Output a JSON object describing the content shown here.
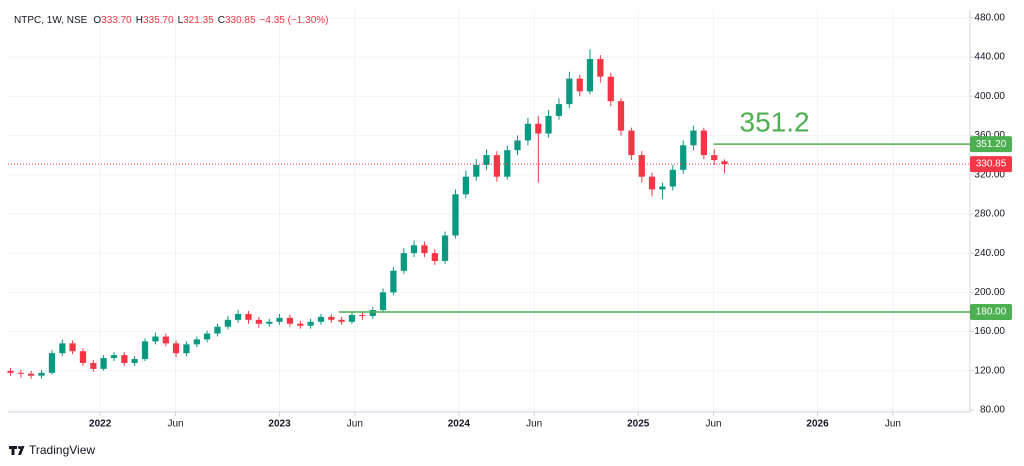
{
  "chart_data": {
    "type": "candlestick",
    "header": {
      "symbol": "NTPC, 1W, NSE",
      "open_label": "O",
      "open": "333.70",
      "high_label": "H",
      "high": "335.70",
      "low_label": "L",
      "low": "321.35",
      "close_label": "C",
      "close": "330.85",
      "change": "−4.35 (−1.30%)"
    },
    "x": [
      2021.5,
      2021.558,
      2021.615,
      2021.673,
      2021.731,
      2021.789,
      2021.846,
      2021.904,
      2021.962,
      2022.019,
      2022.077,
      2022.135,
      2022.192,
      2022.25,
      2022.308,
      2022.366,
      2022.423,
      2022.481,
      2022.539,
      2022.596,
      2022.654,
      2022.712,
      2022.769,
      2022.827,
      2022.885,
      2022.943,
      2023.0,
      2023.058,
      2023.116,
      2023.173,
      2023.231,
      2023.289,
      2023.346,
      2023.404,
      2023.462,
      2023.52,
      2023.577,
      2023.635,
      2023.693,
      2023.75,
      2023.808,
      2023.866,
      2023.923,
      2023.981,
      2024.039,
      2024.097,
      2024.154,
      2024.212,
      2024.27,
      2024.327,
      2024.385,
      2024.443,
      2024.5,
      2024.558,
      2024.616,
      2024.674,
      2024.731,
      2024.789,
      2024.847,
      2024.904,
      2024.962,
      2025.02,
      2025.077,
      2025.135,
      2025.193,
      2025.251,
      2025.308,
      2025.366,
      2025.424,
      2025.481
    ],
    "open": [
      120,
      118,
      117,
      115,
      118,
      138,
      148,
      140,
      128,
      122,
      133,
      136,
      128,
      132,
      150,
      155,
      148,
      138,
      147,
      152,
      158,
      165,
      172,
      178,
      172,
      168,
      170,
      174,
      168,
      166,
      170,
      175,
      172,
      170,
      177,
      176,
      182,
      200,
      222,
      240,
      248,
      240,
      232,
      258,
      300,
      318,
      330,
      340,
      318,
      345,
      355,
      372,
      362,
      380,
      392,
      418,
      405,
      438,
      420,
      395,
      365,
      340,
      318,
      305,
      308,
      325,
      350,
      365,
      340,
      333.7
    ],
    "high": [
      123,
      121,
      120,
      121,
      141,
      152,
      151,
      143,
      131,
      136,
      139,
      139,
      135,
      153,
      159,
      158,
      151,
      150,
      155,
      161,
      168,
      176,
      182,
      181,
      175,
      173,
      178,
      177,
      171,
      173,
      178,
      178,
      175,
      180,
      180,
      185,
      204,
      226,
      245,
      253,
      252,
      244,
      262,
      305,
      324,
      336,
      346,
      344,
      350,
      360,
      378,
      380,
      386,
      398,
      425,
      422,
      448,
      442,
      424,
      398,
      368,
      344,
      322,
      312,
      330,
      355,
      370,
      368,
      346,
      335.7
    ],
    "low": [
      115,
      113,
      112,
      112,
      116,
      135,
      137,
      125,
      119,
      120,
      130,
      125,
      125,
      130,
      147,
      145,
      134,
      135,
      144,
      149,
      155,
      162,
      169,
      168,
      164,
      165,
      167,
      165,
      163,
      163,
      167,
      169,
      167,
      168,
      172,
      173,
      179,
      197,
      219,
      236,
      236,
      228,
      229,
      255,
      296,
      314,
      325,
      313,
      315,
      340,
      350,
      312,
      358,
      376,
      388,
      400,
      402,
      414,
      390,
      360,
      335,
      312,
      298,
      295,
      304,
      321,
      345,
      336,
      330,
      321.35
    ],
    "close": [
      118,
      117,
      115,
      118,
      138,
      148,
      140,
      128,
      122,
      133,
      136,
      128,
      132,
      150,
      155,
      148,
      138,
      147,
      152,
      158,
      165,
      172,
      178,
      172,
      168,
      170,
      174,
      168,
      166,
      170,
      175,
      172,
      170,
      177,
      176,
      182,
      200,
      222,
      240,
      248,
      240,
      232,
      258,
      300,
      318,
      330,
      340,
      318,
      345,
      355,
      372,
      362,
      380,
      392,
      418,
      405,
      438,
      420,
      395,
      365,
      340,
      318,
      305,
      308,
      325,
      350,
      365,
      340,
      335,
      330.85
    ],
    "up_color": "#089981",
    "down_color": "#f23645",
    "xlim": [
      2021.486,
      2026.85
    ],
    "xticks": [
      {
        "value": 2022,
        "label": "2022"
      },
      {
        "value": 2022.42,
        "label": "Jun"
      },
      {
        "value": 2023,
        "label": "2023"
      },
      {
        "value": 2023.42,
        "label": "Jun"
      },
      {
        "value": 2024,
        "label": "2024"
      },
      {
        "value": 2024.42,
        "label": "Jun"
      },
      {
        "value": 2025,
        "label": "2025"
      },
      {
        "value": 2025.42,
        "label": "Jun"
      },
      {
        "value": 2026,
        "label": "2026"
      },
      {
        "value": 2026.42,
        "label": "Jun"
      }
    ],
    "ylim": [
      78,
      488
    ],
    "yticks": [
      {
        "value": 80,
        "label": "80.00"
      },
      {
        "value": 120,
        "label": "120.00"
      },
      {
        "value": 160,
        "label": "160.00"
      },
      {
        "value": 200,
        "label": "200.00"
      },
      {
        "value": 240,
        "label": "240.00"
      },
      {
        "value": 280,
        "label": "280.00"
      },
      {
        "value": 320,
        "label": "320.00"
      },
      {
        "value": 360,
        "label": "360.00"
      },
      {
        "value": 400,
        "label": "400.00"
      },
      {
        "value": 440,
        "label": "440.00"
      },
      {
        "value": 480,
        "label": "480.00"
      }
    ],
    "grid": true,
    "levels": [
      {
        "value": 351.2,
        "label": "351.20",
        "from": 2025.42,
        "color": "#4caf50",
        "annotation": "351.2"
      },
      {
        "value": 180,
        "label": "180.00",
        "from": 2023.33,
        "color": "#4caf50"
      }
    ],
    "last_price": {
      "value": 330.85,
      "label": "330.85",
      "color": "#f23645"
    },
    "brand": "TradingView"
  }
}
